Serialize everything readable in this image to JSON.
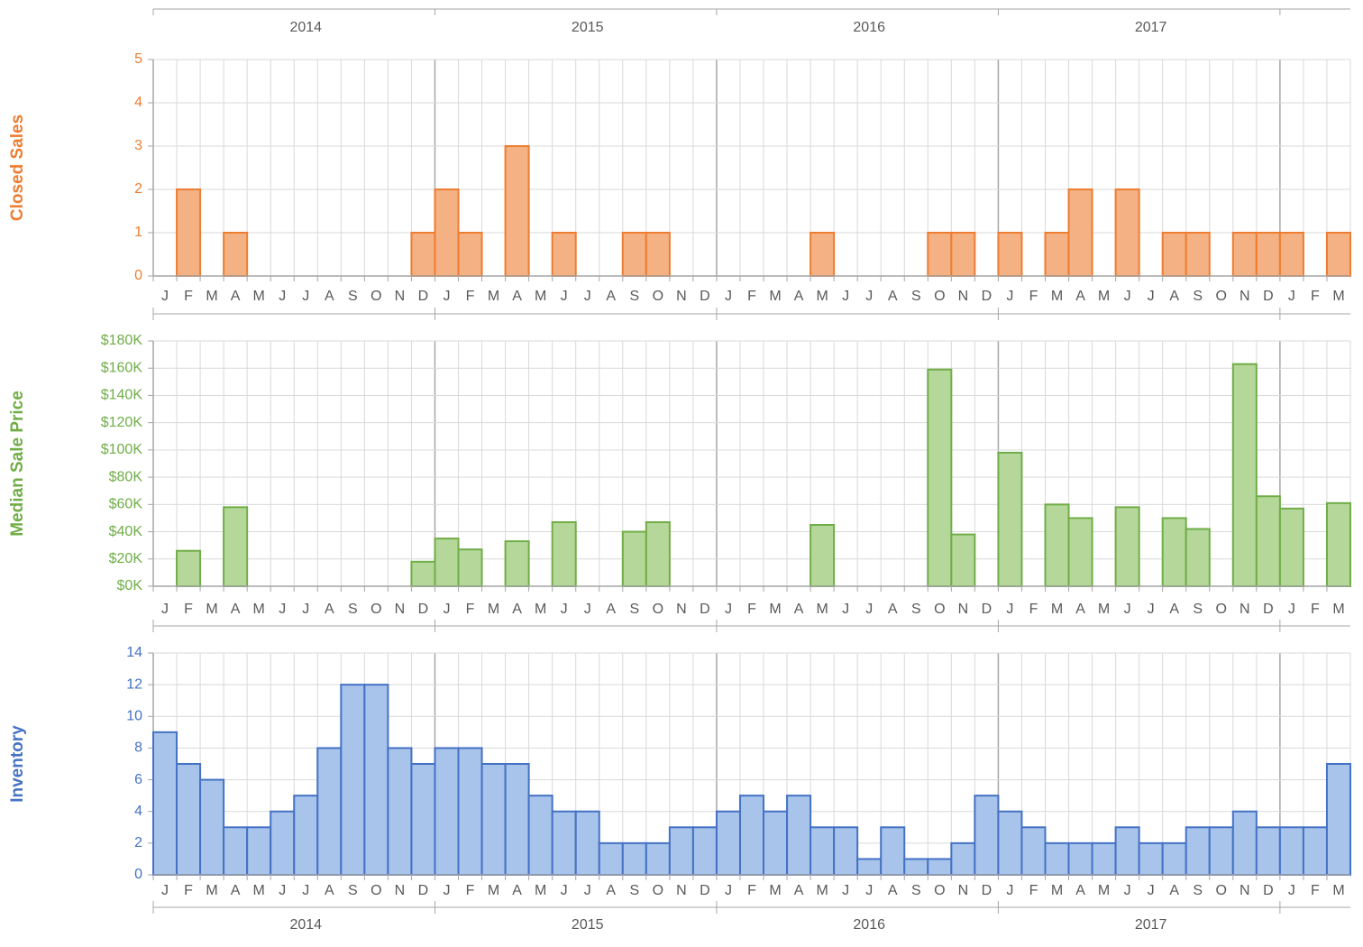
{
  "chart_data": [
    {
      "type": "bar",
      "y_label": "Closed Sales",
      "color": "#f4b183",
      "edge_color": "#ed7d31",
      "years": [
        "2014",
        "2015",
        "2016",
        "2017"
      ],
      "categories": [
        "J",
        "F",
        "M",
        "A",
        "M",
        "J",
        "J",
        "A",
        "S",
        "O",
        "N",
        "D",
        "J",
        "F",
        "M",
        "A",
        "M",
        "J",
        "J",
        "A",
        "S",
        "O",
        "N",
        "D",
        "J",
        "F",
        "M",
        "A",
        "M",
        "J",
        "J",
        "A",
        "S",
        "O",
        "N",
        "D",
        "J",
        "F",
        "M",
        "A",
        "M",
        "J",
        "J",
        "A",
        "S",
        "O",
        "N",
        "D",
        "J",
        "F",
        "M"
      ],
      "values": [
        0,
        2,
        0,
        1,
        0,
        0,
        0,
        0,
        0,
        0,
        0,
        1,
        2,
        1,
        0,
        3,
        0,
        1,
        0,
        0,
        1,
        1,
        0,
        0,
        0,
        0,
        0,
        0,
        1,
        0,
        0,
        0,
        0,
        1,
        1,
        0,
        1,
        0,
        1,
        2,
        0,
        2,
        0,
        1,
        1,
        0,
        1,
        1,
        1,
        0,
        1
      ],
      "ylim": [
        0,
        5
      ],
      "yticks": [
        0,
        1,
        2,
        3,
        4,
        5
      ],
      "grid": true
    },
    {
      "type": "bar",
      "y_label": "Median Sale Price",
      "color": "#b5d89a",
      "edge_color": "#70ad47",
      "categories": [
        "J",
        "F",
        "M",
        "A",
        "M",
        "J",
        "J",
        "A",
        "S",
        "O",
        "N",
        "D",
        "J",
        "F",
        "M",
        "A",
        "M",
        "J",
        "J",
        "A",
        "S",
        "O",
        "N",
        "D",
        "J",
        "F",
        "M",
        "A",
        "M",
        "J",
        "J",
        "A",
        "S",
        "O",
        "N",
        "D",
        "J",
        "F",
        "M",
        "A",
        "M",
        "J",
        "J",
        "A",
        "S",
        "O",
        "N",
        "D",
        "J",
        "F",
        "M"
      ],
      "values": [
        null,
        26000,
        null,
        58000,
        null,
        null,
        null,
        null,
        null,
        null,
        null,
        18000,
        35000,
        27000,
        null,
        33000,
        null,
        47000,
        null,
        null,
        40000,
        47000,
        null,
        null,
        null,
        null,
        null,
        null,
        45000,
        null,
        null,
        null,
        null,
        159000,
        38000,
        null,
        98000,
        null,
        60000,
        50000,
        null,
        58000,
        null,
        50000,
        42000,
        null,
        163000,
        66000,
        57000,
        null,
        61000
      ],
      "ylim": [
        0,
        180000
      ],
      "yticks": [
        {
          "value": 0,
          "label": "$0K"
        },
        {
          "value": 20000,
          "label": "$20K"
        },
        {
          "value": 40000,
          "label": "$40K"
        },
        {
          "value": 60000,
          "label": "$60K"
        },
        {
          "value": 80000,
          "label": "$80K"
        },
        {
          "value": 100000,
          "label": "$100K"
        },
        {
          "value": 120000,
          "label": "$120K"
        },
        {
          "value": 140000,
          "label": "$140K"
        },
        {
          "value": 160000,
          "label": "$160K"
        },
        {
          "value": 180000,
          "label": "$180K"
        }
      ],
      "grid": true
    },
    {
      "type": "bar",
      "y_label": "Inventory",
      "color": "#a9c4eb",
      "edge_color": "#4472c4",
      "years": [
        "2014",
        "2015",
        "2016",
        "2017"
      ],
      "categories": [
        "J",
        "F",
        "M",
        "A",
        "M",
        "J",
        "J",
        "A",
        "S",
        "O",
        "N",
        "D",
        "J",
        "F",
        "M",
        "A",
        "M",
        "J",
        "J",
        "A",
        "S",
        "O",
        "N",
        "D",
        "J",
        "F",
        "M",
        "A",
        "M",
        "J",
        "J",
        "A",
        "S",
        "O",
        "N",
        "D",
        "J",
        "F",
        "M",
        "A",
        "M",
        "J",
        "J",
        "A",
        "S",
        "O",
        "N",
        "D",
        "J",
        "F",
        "M"
      ],
      "values": [
        9,
        7,
        6,
        3,
        3,
        4,
        5,
        8,
        12,
        12,
        8,
        7,
        8,
        8,
        7,
        7,
        5,
        4,
        4,
        2,
        2,
        2,
        3,
        3,
        4,
        5,
        4,
        5,
        3,
        3,
        1,
        3,
        1,
        1,
        2,
        5,
        4,
        3,
        2,
        2,
        2,
        3,
        2,
        2,
        3,
        3,
        4,
        3,
        3,
        3,
        7
      ],
      "ylim": [
        0,
        14
      ],
      "yticks": [
        0,
        2,
        4,
        6,
        8,
        10,
        12,
        14
      ],
      "grid": true
    }
  ]
}
